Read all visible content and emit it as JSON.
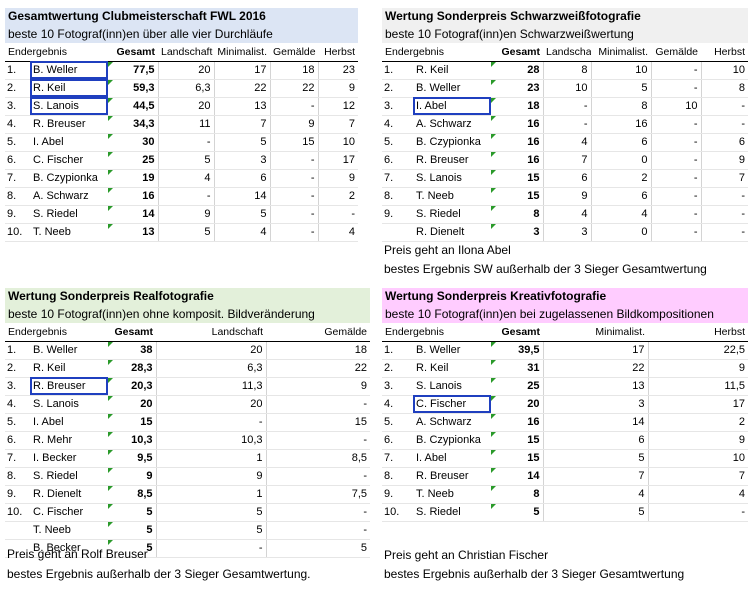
{
  "colors": {
    "p1": "#dce5f4",
    "p2": "#f0f0f0",
    "p3": "#e3f0da",
    "p4": "#ffccff",
    "accent": "#1f3fbf"
  },
  "p1": {
    "title": "Gesamtwertung Clubmeisterschaft FWL 2016",
    "subtitle": "beste 10 Fotograf(inn)en über alle vier Durchläufe",
    "head": [
      "Endergebnis",
      "Gesamt",
      "Landschaft",
      "Minimalist.",
      "Gemälde",
      "Herbst"
    ],
    "rows": [
      [
        "1.",
        "B. Weller",
        "77,5",
        "20",
        "17",
        "18",
        "23"
      ],
      [
        "2.",
        "R. Keil",
        "59,3",
        "6,3",
        "22",
        "22",
        "9"
      ],
      [
        "3.",
        "S. Lanois",
        "44,5",
        "20",
        "13",
        "-",
        "12"
      ],
      [
        "4.",
        "R. Breuser",
        "34,3",
        "11",
        "7",
        "9",
        "7"
      ],
      [
        "5.",
        "I. Abel",
        "30",
        "-",
        "5",
        "15",
        "10"
      ],
      [
        "6.",
        "C. Fischer",
        "25",
        "5",
        "3",
        "-",
        "17"
      ],
      [
        "7.",
        "B. Czypionka",
        "19",
        "4",
        "6",
        "-",
        "9"
      ],
      [
        "8.",
        "A. Schwarz",
        "16",
        "-",
        "14",
        "-",
        "2"
      ],
      [
        "9.",
        "S. Riedel",
        "14",
        "9",
        "5",
        "-",
        "-"
      ],
      [
        "10.",
        "T. Neeb",
        "13",
        "5",
        "4",
        "-",
        "4"
      ]
    ]
  },
  "p2": {
    "title": "Wertung Sonderpreis Schwarzweißfotografie",
    "subtitle": "beste 10 Fotograf(inn)en Schwarzweißwertung",
    "head": [
      "Endergebnis",
      "Gesamt",
      "Landschaft",
      "Minimalist.",
      "Gemälde",
      "Herbst"
    ],
    "rows": [
      [
        "1.",
        "R. Keil",
        "28",
        "8",
        "10",
        "-",
        "10"
      ],
      [
        "2.",
        "B. Weller",
        "23",
        "10",
        "5",
        "-",
        "8"
      ],
      [
        "3.",
        "I. Abel",
        "18",
        "-",
        "8",
        "10",
        "-"
      ],
      [
        "4.",
        "A. Schwarz",
        "16",
        "-",
        "16",
        "-",
        "-"
      ],
      [
        "5.",
        "B. Czypionka",
        "16",
        "4",
        "6",
        "-",
        "6"
      ],
      [
        "6.",
        "R. Breuser",
        "16",
        "7",
        "0",
        "-",
        "9"
      ],
      [
        "7.",
        "S. Lanois",
        "15",
        "6",
        "2",
        "-",
        "7"
      ],
      [
        "8.",
        "T. Neeb",
        "15",
        "9",
        "6",
        "-",
        "-"
      ],
      [
        "9.",
        "S. Riedel",
        "8",
        "4",
        "4",
        "-",
        "-"
      ],
      [
        "",
        "R. Dienelt",
        "3",
        "3",
        "0",
        "-",
        "-"
      ]
    ],
    "note1": "Preis geht an Ilona Abel",
    "note2": "bestes Ergebnis SW außerhalb der 3 Sieger Gesamtwertung"
  },
  "p3": {
    "title": "Wertung Sonderpreis Realfotografie",
    "subtitle": "beste 10 Fotograf(inn)en ohne komposit. Bildveränderung",
    "head": [
      "Endergebnis",
      "Gesamt",
      "Landschaft",
      "Gemälde"
    ],
    "rows": [
      [
        "1.",
        "B. Weller",
        "38",
        "20",
        "18"
      ],
      [
        "2.",
        "R. Keil",
        "28,3",
        "6,3",
        "22"
      ],
      [
        "3.",
        "R. Breuser",
        "20,3",
        "11,3",
        "9"
      ],
      [
        "4.",
        "S. Lanois",
        "20",
        "20",
        "-"
      ],
      [
        "5.",
        "I. Abel",
        "15",
        "-",
        "15"
      ],
      [
        "6.",
        "R. Mehr",
        "10,3",
        "10,3",
        "-"
      ],
      [
        "7.",
        "I. Becker",
        "9,5",
        "1",
        "8,5"
      ],
      [
        "8.",
        "S. Riedel",
        "9",
        "9",
        "-"
      ],
      [
        "9.",
        "R. Dienelt",
        "8,5",
        "1",
        "7,5"
      ],
      [
        "10.",
        "C. Fischer",
        "5",
        "5",
        "-"
      ],
      [
        "",
        "T. Neeb",
        "5",
        "5",
        "-"
      ],
      [
        "",
        "B. Becker",
        "5",
        "-",
        "5"
      ]
    ],
    "note1": "Preis geht an Rolf Breuser",
    "note2": "bestes Ergebnis außerhalb der 3 Sieger Gesamtwertung."
  },
  "p4": {
    "title": "Wertung Sonderpreis Kreativfotografie",
    "subtitle": "beste 10 Fotograf(inn)en bei zugelassenen Bildkompositionen",
    "head": [
      "Endergebnis",
      "Gesamt",
      "Minimalist.",
      "Herbst"
    ],
    "rows": [
      [
        "1.",
        "B. Weller",
        "39,5",
        "17",
        "22,5"
      ],
      [
        "2.",
        "R. Keil",
        "31",
        "22",
        "9"
      ],
      [
        "3.",
        "S. Lanois",
        "25",
        "13",
        "11,5"
      ],
      [
        "4.",
        "C. Fischer",
        "20",
        "3",
        "17"
      ],
      [
        "5.",
        "A. Schwarz",
        "16",
        "14",
        "2"
      ],
      [
        "6.",
        "B. Czypionka",
        "15",
        "6",
        "9"
      ],
      [
        "7.",
        "I. Abel",
        "15",
        "5",
        "10"
      ],
      [
        "8.",
        "R. Breuser",
        "14",
        "7",
        "7"
      ],
      [
        "9.",
        "T. Neeb",
        "8",
        "4",
        "4"
      ],
      [
        "10.",
        "S. Riedel",
        "5",
        "5",
        "-"
      ]
    ],
    "note1": "Preis geht an Christian Fischer",
    "note2": "bestes Ergebnis außerhalb der 3 Sieger Gesamtwertung"
  }
}
